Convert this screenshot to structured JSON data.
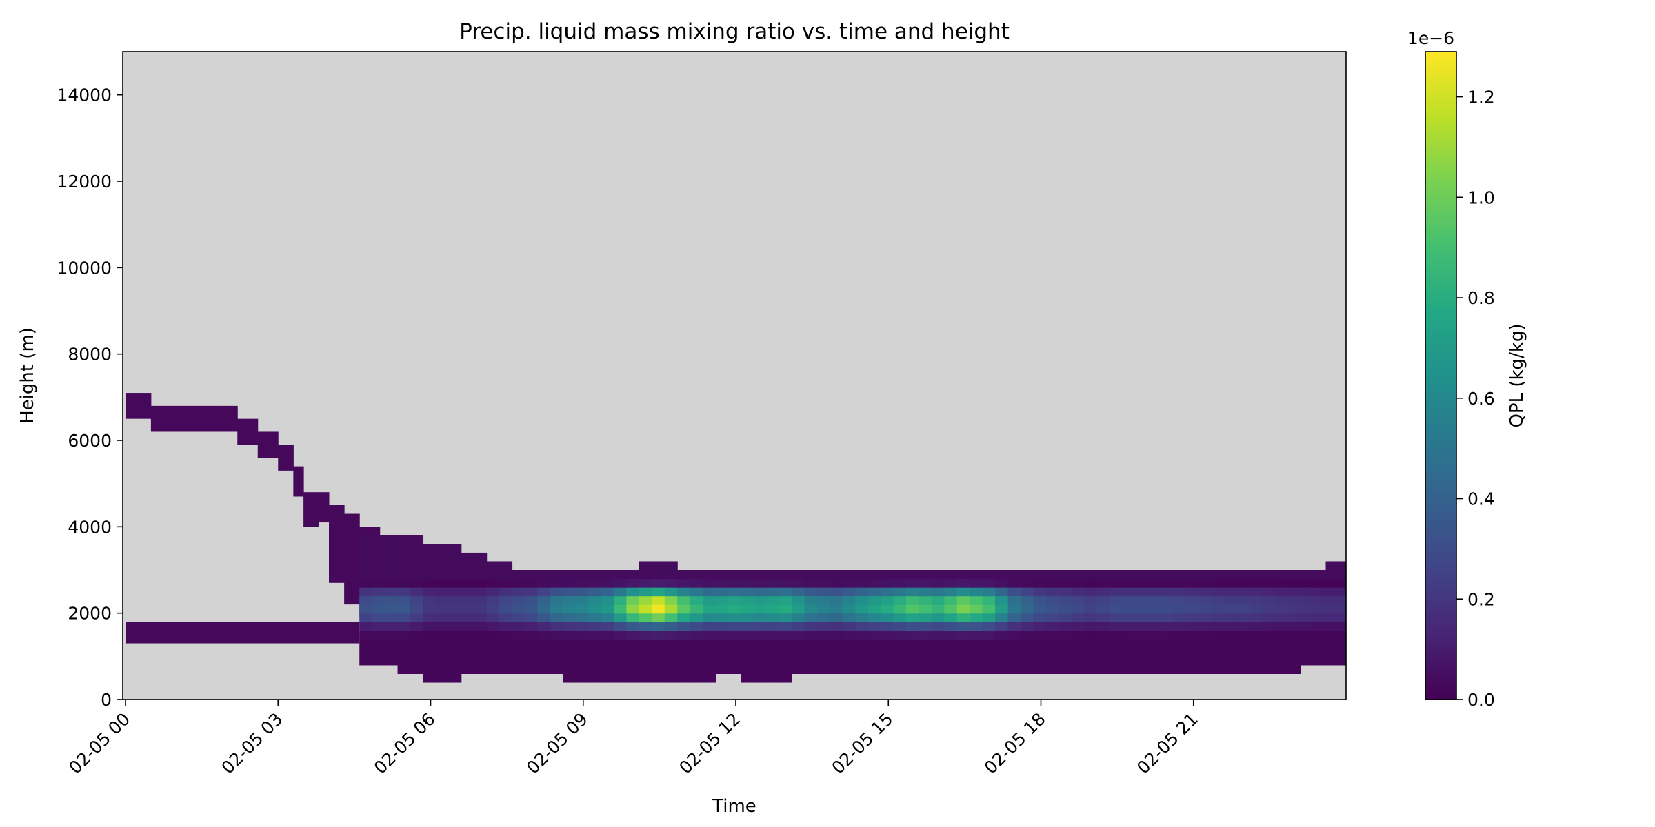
{
  "chart_data": {
    "type": "heatmap",
    "title": "Precip. liquid mass mixing ratio vs. time and height",
    "xlabel": "Time",
    "ylabel": "Height (m)",
    "x_range_hours": [
      0,
      24
    ],
    "ylim": [
      0,
      15000
    ],
    "xticks": [
      {
        "hour": 0,
        "label": "02-05 00"
      },
      {
        "hour": 3,
        "label": "02-05 03"
      },
      {
        "hour": 6,
        "label": "02-05 06"
      },
      {
        "hour": 9,
        "label": "02-05 09"
      },
      {
        "hour": 12,
        "label": "02-05 12"
      },
      {
        "hour": 15,
        "label": "02-05 15"
      },
      {
        "hour": 18,
        "label": "02-05 18"
      },
      {
        "hour": 21,
        "label": "02-05 21"
      }
    ],
    "yticks": [
      0,
      2000,
      4000,
      6000,
      8000,
      10000,
      12000,
      14000
    ],
    "background_color": "#d3d3d3",
    "colormap": "viridis",
    "colorbar": {
      "label": "QPL (kg/kg)",
      "exponent_label": "1e−6",
      "range": [
        0,
        1.29
      ],
      "ticks": [
        "0.0",
        "0.2",
        "0.4",
        "0.6",
        "0.8",
        "1.0",
        "1.2"
      ],
      "tick_values": [
        0.0,
        0.2,
        0.4,
        0.6,
        0.8,
        1.0,
        1.2
      ]
    },
    "layers": [
      {
        "description_hours": "upper thin layer",
        "points": [
          {
            "hour": 0.0,
            "bottom": 6500,
            "top": 7100
          },
          {
            "hour": 0.5,
            "bottom": 6200,
            "top": 6800
          },
          {
            "hour": 1.8,
            "bottom": 6200,
            "top": 6800
          },
          {
            "hour": 2.2,
            "bottom": 5900,
            "top": 6500
          },
          {
            "hour": 2.6,
            "bottom": 5600,
            "top": 6200
          },
          {
            "hour": 3.0,
            "bottom": 5300,
            "top": 5900
          },
          {
            "hour": 3.3,
            "bottom": 4700,
            "top": 5400
          },
          {
            "hour": 3.5,
            "bottom": 4000,
            "top": 4800
          },
          {
            "hour": 3.8,
            "bottom": 4100,
            "top": 4800
          },
          {
            "hour": 4.0,
            "bottom": 2700,
            "top": 4500
          },
          {
            "hour": 4.3,
            "bottom": 2200,
            "top": 4300
          },
          {
            "hour": 4.6,
            "bottom": 1900,
            "top": 4000
          }
        ]
      },
      {
        "description_hours": "lower layer",
        "start_hour": 0.0,
        "end_hour": 4.6,
        "bottom": 1300,
        "top": 1800
      }
    ],
    "main_band": {
      "hours": [
        4.6,
        5.0,
        5.5,
        6.0,
        6.5,
        7.0,
        7.5,
        8.0,
        8.5,
        9.0,
        9.5,
        10.0,
        10.5,
        11.0,
        11.5,
        12.0,
        12.5,
        13.0,
        13.5,
        14.0,
        14.5,
        15.0,
        15.5,
        16.0,
        16.5,
        17.0,
        17.5,
        18.0,
        18.5,
        19.0,
        19.5,
        20.0,
        20.5,
        21.0,
        21.5,
        22.0,
        22.5,
        23.0,
        23.5,
        24.0
      ],
      "bottom": [
        1000,
        900,
        700,
        500,
        600,
        700,
        600,
        600,
        600,
        500,
        500,
        400,
        400,
        500,
        600,
        600,
        500,
        600,
        700,
        700,
        700,
        600,
        600,
        600,
        600,
        600,
        600,
        600,
        700,
        700,
        700,
        600,
        600,
        700,
        700,
        700,
        700,
        800,
        900,
        900
      ],
      "top": [
        3700,
        3700,
        3700,
        3500,
        3400,
        3300,
        3000,
        2900,
        3000,
        3000,
        3000,
        3000,
        3100,
        2900,
        2900,
        3000,
        3000,
        2900,
        2900,
        2900,
        2900,
        3000,
        3000,
        3000,
        3000,
        2900,
        3000,
        3000,
        2900,
        2900,
        2900,
        2900,
        2900,
        2900,
        3000,
        2900,
        2900,
        2900,
        3000,
        3100
      ],
      "max_qpl": [
        0.3,
        0.35,
        0.35,
        0.2,
        0.2,
        0.2,
        0.3,
        0.35,
        0.55,
        0.6,
        0.7,
        1.1,
        1.28,
        0.95,
        0.75,
        0.8,
        0.75,
        0.8,
        0.6,
        0.55,
        0.7,
        0.8,
        0.95,
        0.85,
        1.05,
        0.9,
        0.5,
        0.35,
        0.3,
        0.25,
        0.3,
        0.3,
        0.3,
        0.28,
        0.25,
        0.25,
        0.22,
        0.2,
        0.18,
        0.18
      ]
    }
  }
}
